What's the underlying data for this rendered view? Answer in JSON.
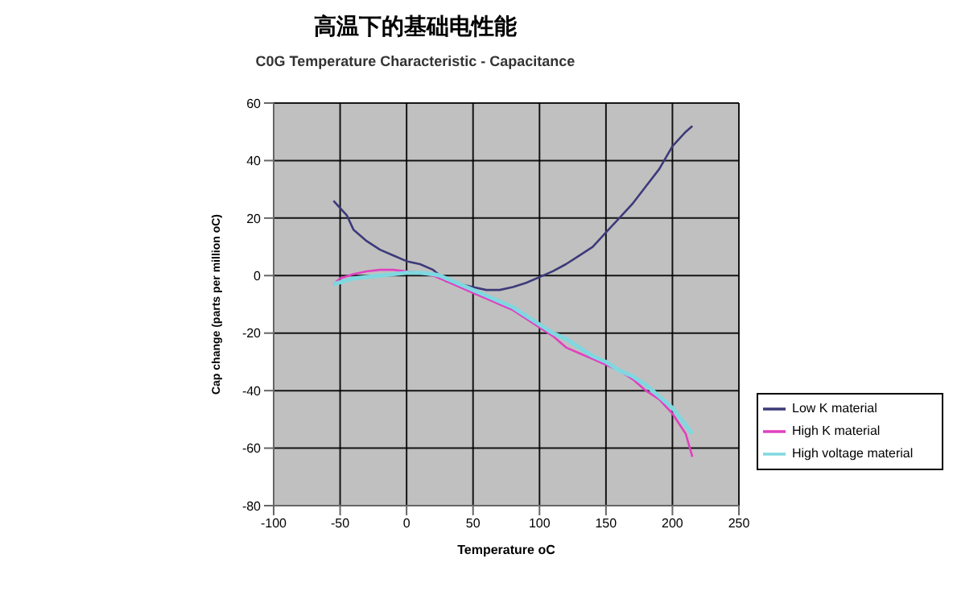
{
  "chart_data": {
    "type": "line",
    "title": "高温下的基础电性能",
    "subtitle": "C0G Temperature Characteristic - Capacitance",
    "xlabel": "Temperature oC",
    "ylabel": "Cap change (parts per million oC)",
    "xlim": [
      -100,
      250
    ],
    "xticks": [
      -100,
      -50,
      0,
      50,
      100,
      150,
      200,
      250
    ],
    "ylim": [
      -80,
      60
    ],
    "yticks": [
      -80,
      -60,
      -40,
      -20,
      0,
      20,
      40,
      60
    ],
    "grid": true,
    "legend": "right",
    "marker": "none",
    "line_style": "solid",
    "series": [
      {
        "name": "Low K material",
        "color": "#3d3a7a",
        "x": [
          -55,
          -45,
          -40,
          -30,
          -20,
          -10,
          0,
          10,
          20,
          25,
          30,
          40,
          50,
          60,
          70,
          80,
          90,
          100,
          110,
          120,
          130,
          140,
          150,
          160,
          170,
          180,
          190,
          200,
          210,
          215
        ],
        "values": [
          26,
          21,
          16,
          12,
          9,
          7,
          5,
          4,
          2,
          0,
          -2,
          -3,
          -4,
          -5,
          -5,
          -4,
          -2.5,
          -0.5,
          1.5,
          4,
          7,
          10,
          15,
          20,
          25,
          31,
          37,
          45,
          50,
          52
        ]
      },
      {
        "name": "High K material",
        "color": "#e040c0",
        "x": [
          -55,
          -50,
          -40,
          -30,
          -20,
          -10,
          0,
          10,
          20,
          30,
          40,
          50,
          60,
          70,
          80,
          90,
          100,
          110,
          120,
          130,
          140,
          150,
          160,
          170,
          180,
          190,
          200,
          210,
          215
        ],
        "values": [
          -3,
          -1,
          0.5,
          1.5,
          2,
          2,
          1.5,
          1,
          0,
          -2,
          -4,
          -6,
          -8,
          -10,
          -12,
          -15,
          -18,
          -21,
          -25,
          -27,
          -29,
          -31,
          -33,
          -36,
          -40,
          -43,
          -48,
          -55,
          -63
        ]
      },
      {
        "name": "High voltage material",
        "color": "#7fd8e0",
        "x": [
          -55,
          -40,
          -30,
          -20,
          -10,
          0,
          10,
          20,
          25,
          30,
          40,
          50,
          60,
          70,
          80,
          90,
          100,
          110,
          120,
          130,
          140,
          150,
          160,
          170,
          180,
          190,
          200,
          210,
          215
        ],
        "values": [
          -3,
          -1,
          -0.5,
          0,
          0.5,
          1,
          1,
          0.5,
          0,
          -1,
          -3,
          -5,
          -7,
          -9,
          -11,
          -14,
          -17,
          -20,
          -22,
          -25,
          -28,
          -30,
          -33,
          -35,
          -38,
          -42,
          -46,
          -52,
          -55
        ]
      }
    ]
  }
}
